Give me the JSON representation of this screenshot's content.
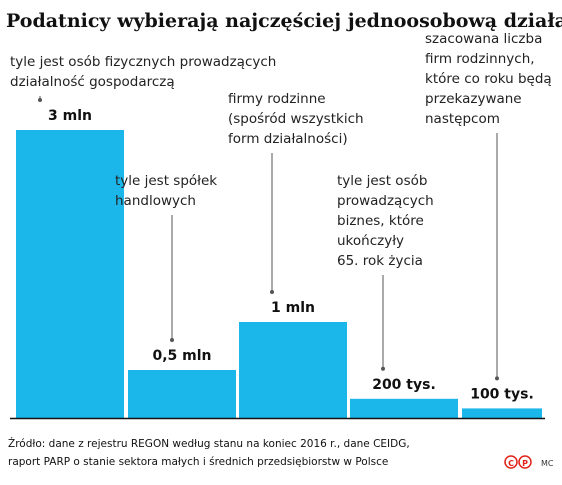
{
  "chart_data": {
    "type": "bar",
    "title": "Podatnicy wybierają najczęściej jednoosobową działalność",
    "categories": [
      [
        "tyle jest osób fizycznych prowadzących",
        "działalność gospodarczą"
      ],
      [
        "tyle jest spółek",
        "handlowych"
      ],
      [
        "firmy rodzinne",
        "(spośród wszystkich",
        "form działalności)"
      ],
      [
        "tyle jest osób",
        "prowadzących",
        "biznes, które",
        "ukończyły",
        "65. rok życia"
      ],
      [
        "szacowana liczba",
        "firm rodzinnych,",
        "które co roku będą",
        "przekazywane",
        "następcom"
      ]
    ],
    "values": [
      3000000,
      500000,
      1000000,
      200000,
      100000
    ],
    "value_labels": [
      "3 mln",
      "0,5 mln",
      "1 mln",
      "200 tys.",
      "100 tys."
    ],
    "color": "#1bb7ea",
    "ylim": [
      0,
      3000000
    ],
    "source": [
      "Źródło: dane z rejestru REGON według stanu na koniec 2016 r., dane CEIDG,",
      "raport PARP o  stanie sektora małych i średnich przedsiębiorstw w Polsce"
    ],
    "credit": "MC"
  }
}
